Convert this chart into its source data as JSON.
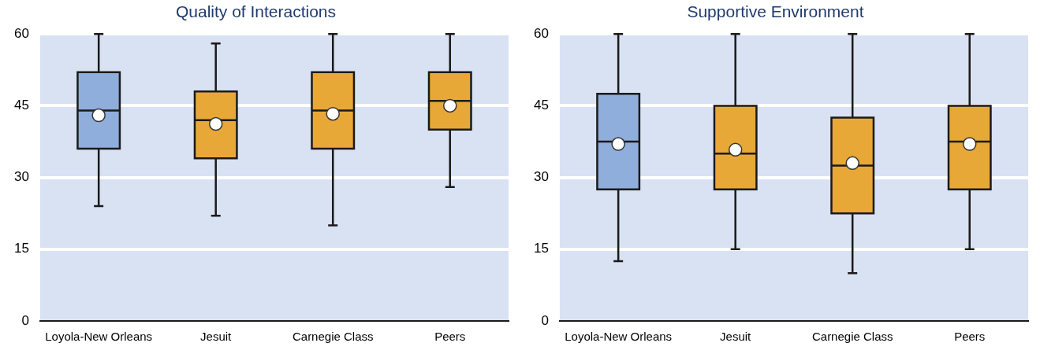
{
  "chart_data": [
    {
      "type": "box",
      "title": "Quality of Interactions",
      "categories": [
        "Loyola-New Orleans",
        "Jesuit",
        "Carnegie Class",
        "Peers"
      ],
      "boxes": [
        {
          "low": 24,
          "q1": 36,
          "median": 44,
          "q3": 52,
          "high": 60,
          "mean": 43
        },
        {
          "low": 22,
          "q1": 34,
          "median": 42,
          "q3": 48,
          "high": 58,
          "mean": 41.2
        },
        {
          "low": 20,
          "q1": 36,
          "median": 44,
          "q3": 52,
          "high": 60,
          "mean": 43.3
        },
        {
          "low": 28,
          "q1": 40,
          "median": 46,
          "q3": 52,
          "high": 60,
          "mean": 45
        }
      ],
      "colors": [
        "#8faedc",
        "#e8a838",
        "#e8a838",
        "#e8a838"
      ],
      "ylim": [
        0,
        60
      ],
      "yticks": [
        0,
        15,
        30,
        45,
        60
      ],
      "grid": "y"
    },
    {
      "type": "box",
      "title": "Supportive Environment",
      "categories": [
        "Loyola-New Orleans",
        "Jesuit",
        "Carnegie Class",
        "Peers"
      ],
      "boxes": [
        {
          "low": 12.5,
          "q1": 27.5,
          "median": 37.5,
          "q3": 47.5,
          "high": 60,
          "mean": 37
        },
        {
          "low": 15,
          "q1": 27.5,
          "median": 35,
          "q3": 45,
          "high": 60,
          "mean": 35.8
        },
        {
          "low": 10,
          "q1": 22.5,
          "median": 32.5,
          "q3": 42.5,
          "high": 60,
          "mean": 33
        },
        {
          "low": 15,
          "q1": 27.5,
          "median": 37.5,
          "q3": 45,
          "high": 60,
          "mean": 37
        }
      ],
      "colors": [
        "#8faedc",
        "#e8a838",
        "#e8a838",
        "#e8a838"
      ],
      "ylim": [
        0,
        60
      ],
      "yticks": [
        0,
        15,
        30,
        45,
        60
      ],
      "grid": "y"
    }
  ]
}
